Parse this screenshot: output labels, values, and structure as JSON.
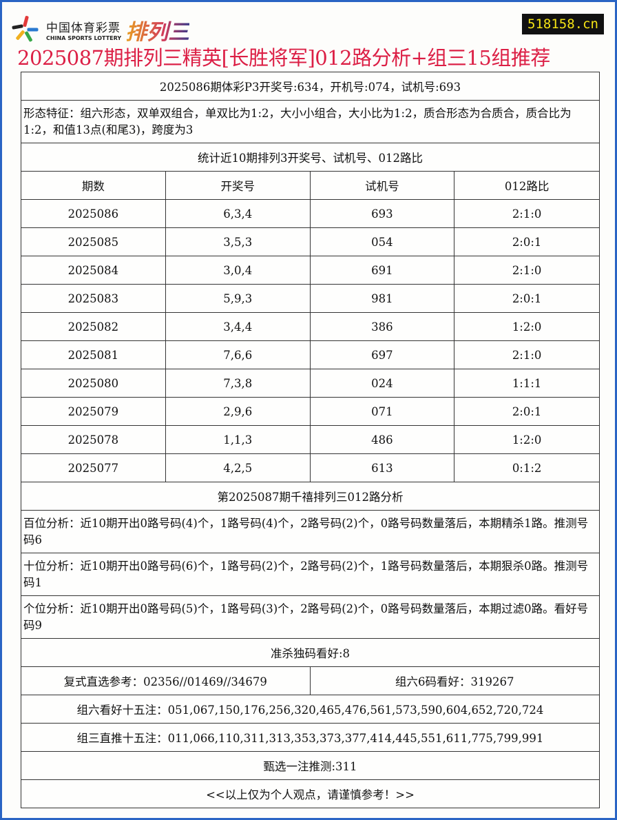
{
  "header": {
    "logo_cn": "中国体育彩票",
    "logo_en": "CHINA SPORTS LOTTERY",
    "logo_game": "排列三",
    "site": "518158.cn",
    "title": "2025087期排列三精英[长胜将军]012路分析+组三15组推荐"
  },
  "colors": {
    "title": "#dc1f45",
    "site_bg": "#111111",
    "site_text": "#f5e415",
    "frame": "#2a64c4"
  },
  "summary": "2025086期体彩P3开奖号:634，开机号:074，试机号:693",
  "features": "形态特征：组六形态，双单双组合，单双比为1:2，大小小组合，大小比为1:2，质合形态为合质合，质合比为1:2，和值13点(和尾3)，跨度为3",
  "stats_title": "统计近10期排列3开奖号、试机号、012路比",
  "columns": [
    "期数",
    "开奖号",
    "试机号",
    "012路比"
  ],
  "rows": [
    [
      "2025086",
      "6,3,4",
      "693",
      "2:1:0"
    ],
    [
      "2025085",
      "3,5,3",
      "054",
      "2:0:1"
    ],
    [
      "2025084",
      "3,0,4",
      "691",
      "2:1:0"
    ],
    [
      "2025083",
      "5,9,3",
      "981",
      "2:0:1"
    ],
    [
      "2025082",
      "3,4,4",
      "386",
      "1:2:0"
    ],
    [
      "2025081",
      "7,6,6",
      "697",
      "2:1:0"
    ],
    [
      "2025080",
      "7,3,8",
      "024",
      "1:1:1"
    ],
    [
      "2025079",
      "2,9,6",
      "071",
      "2:0:1"
    ],
    [
      "2025078",
      "1,1,3",
      "486",
      "1:2:0"
    ],
    [
      "2025077",
      "4,2,5",
      "613",
      "0:1:2"
    ]
  ],
  "analysis_title": "第2025087期千禧排列三012路分析",
  "analysis": [
    "百位分析：近10期开出0路号码(4)个，1路号码(4)个，2路号码(2)个，0路号码数量落后，本期精杀1路。推测号码6",
    "十位分析：近10期开出0路号码(6)个，1路号码(2)个，2路号码(2)个，1路号码数量落后，本期狠杀0路。推测号码1",
    "个位分析：近10期开出0路号码(5)个，1路号码(3)个，2路号码(2)个，0路号码数量落后，本期过滤0路。看好号码9"
  ],
  "kill": "准杀独码看好:8",
  "fushi": "复式直选参考：02356//01469//34679",
  "zu6_6": "组六6码看好：319267",
  "zu6_15": "组六看好十五注：051,067,150,176,256,320,465,476,561,573,590,604,652,720,724",
  "zu3_15": "组三直推十五注：011,066,110,311,313,353,373,377,414,445,551,611,775,799,991",
  "pick": "甄选一注推测:311",
  "footer": "<<以上仅为个人观点，请谨慎参考！>>"
}
